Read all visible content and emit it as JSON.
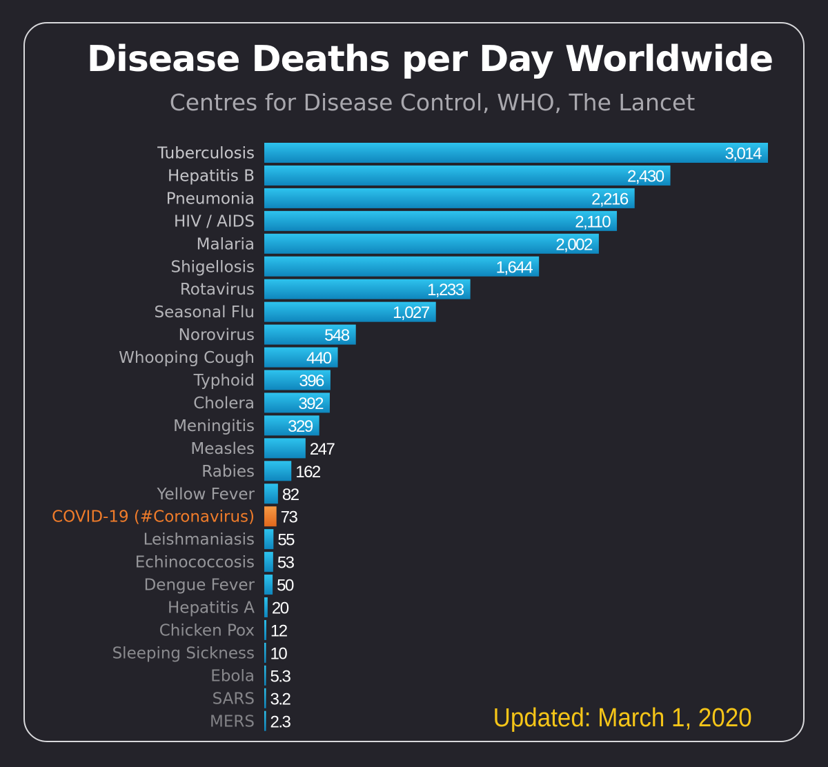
{
  "colors": {
    "background": "#24232a",
    "frame": "#d9d9dc",
    "bar": "#1aa3d6",
    "highlight_bar": "#f07c2a",
    "highlight_label": "#f07c2a",
    "updated_text": "#f5c518"
  },
  "chart_data": {
    "type": "bar",
    "orientation": "horizontal",
    "title": "Disease Deaths per Day Worldwide",
    "subtitle": "Centres for Disease Control, WHO, The Lancet",
    "xlim": [
      0,
      3014
    ],
    "grid": false,
    "legend": "none",
    "categories": [
      "Tuberculosis",
      "Hepatitis B",
      "Pneumonia",
      "HIV / AIDS",
      "Malaria",
      "Shigellosis",
      "Rotavirus",
      "Seasonal Flu",
      "Norovirus",
      "Whooping Cough",
      "Typhoid",
      "Cholera",
      "Meningitis",
      "Measles",
      "Rabies",
      "Yellow Fever",
      "COVID-19 (#Coronavirus)",
      "Leishmaniasis",
      "Echinococcosis",
      "Dengue Fever",
      "Hepatitis A",
      "Chicken Pox",
      "Sleeping Sickness",
      "Ebola",
      "SARS",
      "MERS"
    ],
    "values": [
      3014,
      2430,
      2216,
      2110,
      2002,
      1644,
      1233,
      1027,
      548,
      440,
      396,
      392,
      329,
      247,
      162,
      82,
      73,
      55,
      53,
      50,
      20,
      12,
      10,
      5.3,
      3.2,
      2.3
    ],
    "value_labels": [
      "3,014",
      "2,430",
      "2,216",
      "2,110",
      "2,002",
      "1,644",
      "1,233",
      "1,027",
      "548",
      "440",
      "396",
      "392",
      "329",
      "247",
      "162",
      "82",
      "73",
      "55",
      "53",
      "50",
      "20",
      "12",
      "10",
      "5.3",
      "3.2",
      "2.3"
    ],
    "highlight": "COVID-19 (#Coronavirus)",
    "annotation": "Updated: March 1, 2020"
  }
}
